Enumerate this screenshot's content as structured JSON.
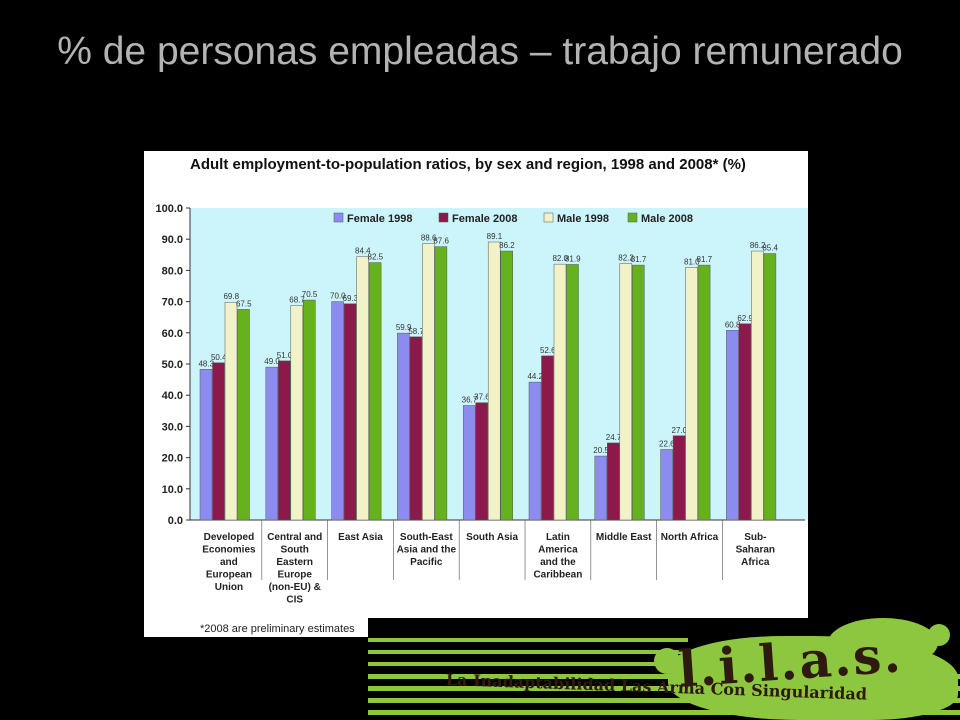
{
  "slide": {
    "title": "% de personas empleadas – trabajo remunerado"
  },
  "chart_data": {
    "type": "bar",
    "title": "Adult employment-to-population ratios, by sex and region, 1998 and 2008* (%)",
    "footnote": "*2008 are preliminary estimates",
    "categories": [
      "Developed Economies and European Union",
      "Central and South Eastern Europe (non-EU) & CIS",
      "East Asia",
      "South-East Asia and the Pacific",
      "South Asia",
      "Latin America and the Caribbean",
      "Middle East",
      "North Africa",
      "Sub-Saharan Africa"
    ],
    "category_lines": [
      [
        "Developed",
        "Economies",
        "and",
        "European",
        "Union"
      ],
      [
        "Central and",
        "South",
        "Eastern",
        "Europe",
        "(non-EU) &",
        "CIS"
      ],
      [
        "East Asia"
      ],
      [
        "South-East",
        "Asia and the",
        "Pacific"
      ],
      [
        "South Asia"
      ],
      [
        "Latin",
        "America",
        "and the",
        "Caribbean"
      ],
      [
        "Middle East"
      ],
      [
        "North Africa"
      ],
      [
        "Sub-",
        "Saharan",
        "Africa"
      ]
    ],
    "series": [
      {
        "name": "Female 1998",
        "color": "#8c8cf0",
        "values": [
          48.3,
          49.0,
          70.0,
          59.9,
          36.7,
          44.2,
          20.5,
          22.6,
          60.8
        ]
      },
      {
        "name": "Female 2008",
        "color": "#8b1a4a",
        "values": [
          50.4,
          51.0,
          69.3,
          58.7,
          37.6,
          52.6,
          24.7,
          27.0,
          62.9
        ]
      },
      {
        "name": "Male 1998",
        "color": "#f2f2c8",
        "values": [
          69.8,
          68.7,
          84.4,
          88.6,
          89.1,
          82.0,
          82.2,
          81.0,
          86.2
        ]
      },
      {
        "name": "Male 2008",
        "color": "#66b21e",
        "values": [
          67.5,
          70.5,
          82.5,
          87.6,
          86.2,
          81.9,
          81.7,
          81.7,
          85.4
        ]
      }
    ],
    "ylim": [
      0,
      100
    ],
    "yticks": [
      "0.0",
      "10.0",
      "20.0",
      "30.0",
      "40.0",
      "50.0",
      "60.0",
      "70.0",
      "80.0",
      "90.0",
      "100.0"
    ],
    "plot_background": "#ccf5fb",
    "legend_position": "top",
    "grid": false
  },
  "logo": {
    "letters": "l.i.l.a.s.",
    "tagline": "La Inadaptabilidad Las Arma Con Singularidad"
  }
}
